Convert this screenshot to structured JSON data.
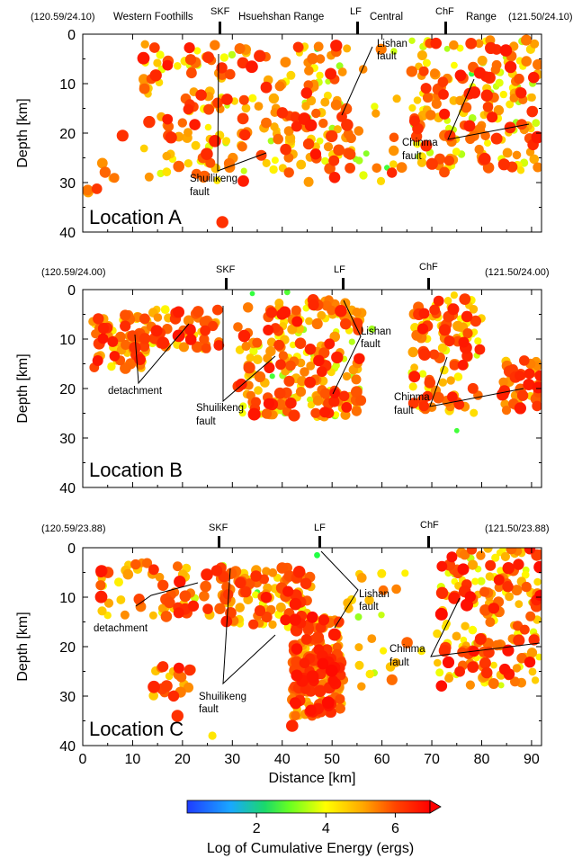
{
  "figure": {
    "xlabel": "Distance [km]",
    "ylabel": "Depth [km]",
    "colorbar": {
      "label": "Log of Cumulative Energy (ergs)",
      "ticks": [
        "2",
        "4",
        "6"
      ],
      "range": [
        0,
        7
      ],
      "colors": [
        "#1f3cff",
        "#19c8ff",
        "#22ff44",
        "#ffff00",
        "#ff8800",
        "#ff0000"
      ]
    },
    "region_labels": [
      "Western Foothills",
      "Hsuehshan Range",
      "Central",
      "Range"
    ],
    "fault_ticks": [
      "SKF",
      "LF",
      "ChF"
    ]
  },
  "panels": [
    {
      "location": "Location A",
      "left_coord": "(120.59/24.10)",
      "right_coord": "(121.50/24.10)",
      "annotations": [
        "Lishan",
        "fault",
        "Chinma",
        "fault",
        "Shuilikeng",
        "fault"
      ]
    },
    {
      "location": "Location B",
      "left_coord": "(120.59/24.00)",
      "right_coord": "(121.50/24.00)",
      "annotations": [
        "Lishan",
        "fault",
        "Chinma",
        "fault",
        "Shuilikeng",
        "fault",
        "detachment"
      ]
    },
    {
      "location": "Location C",
      "left_coord": "(120.59/23.88)",
      "right_coord": "(121.50/23.88)",
      "annotations": [
        "Lishan",
        "fault",
        "Chinma",
        "fault",
        "Shuilikeng",
        "fault",
        "detachment"
      ]
    }
  ],
  "chart_data": [
    {
      "type": "scatter",
      "title": "Location A",
      "xlabel": "",
      "ylabel": "Depth [km]",
      "xlim": [
        0,
        92
      ],
      "ylim": [
        0,
        40
      ],
      "fault_positions_km": {
        "SKF": 28,
        "LF": 55,
        "ChF": 73
      },
      "clusters": [
        {
          "x_range": [
            12,
            54
          ],
          "depth_range": [
            2,
            30
          ],
          "energy_range": [
            3.5,
            6.8
          ],
          "count": 240
        },
        {
          "x_range": [
            66,
            92
          ],
          "depth_range": [
            1,
            28
          ],
          "energy_range": [
            3.5,
            6.8
          ],
          "count": 200
        },
        {
          "x_range": [
            0,
            10
          ],
          "depth_range": [
            25,
            35
          ],
          "energy_range": [
            4.5,
            6.5
          ],
          "count": 6
        },
        {
          "x_range": [
            54,
            66
          ],
          "depth_range": [
            3,
            30
          ],
          "energy_range": [
            3.2,
            6.5
          ],
          "count": 18
        }
      ],
      "events": [
        {
          "x": 47,
          "depth": 3,
          "energy": 2.8
        },
        {
          "x": 78,
          "depth": 8,
          "energy": 2.9
        },
        {
          "x": 61,
          "depth": 27,
          "energy": 3.0
        },
        {
          "x": 28,
          "depth": 38,
          "energy": 6.5
        },
        {
          "x": 1,
          "depth": 31.5,
          "energy": 5.8
        },
        {
          "x": 8,
          "depth": 20.5,
          "energy": 6.5
        },
        {
          "x": 62,
          "depth": 28,
          "energy": 6.6
        }
      ]
    },
    {
      "type": "scatter",
      "title": "Location B",
      "xlabel": "",
      "ylabel": "Depth [km]",
      "xlim": [
        0,
        92
      ],
      "ylim": [
        0,
        40
      ],
      "fault_positions_km": {
        "SKF": 29,
        "LF": 53,
        "ChF": 70
      },
      "clusters": [
        {
          "x_range": [
            2,
            14
          ],
          "depth_range": [
            5,
            16
          ],
          "energy_range": [
            4.0,
            6.8
          ],
          "count": 80
        },
        {
          "x_range": [
            14,
            28
          ],
          "depth_range": [
            4,
            12
          ],
          "energy_range": [
            4.0,
            6.8
          ],
          "count": 45
        },
        {
          "x_range": [
            31,
            56
          ],
          "depth_range": [
            2,
            26
          ],
          "energy_range": [
            3.5,
            6.8
          ],
          "count": 230
        },
        {
          "x_range": [
            66,
            80
          ],
          "depth_range": [
            1,
            25
          ],
          "energy_range": [
            3.8,
            6.8
          ],
          "count": 110
        },
        {
          "x_range": [
            84,
            92
          ],
          "depth_range": [
            14,
            25
          ],
          "energy_range": [
            4.5,
            6.8
          ],
          "count": 40
        }
      ],
      "events": [
        {
          "x": 36,
          "depth": 18.5,
          "energy": 2.7
        },
        {
          "x": 38,
          "depth": 17.5,
          "energy": 3.0
        },
        {
          "x": 75,
          "depth": 28.5,
          "energy": 3.0
        },
        {
          "x": 34,
          "depth": 0.8,
          "energy": 2.9
        },
        {
          "x": 41,
          "depth": 0.5,
          "energy": 3.1
        },
        {
          "x": 58,
          "depth": 8,
          "energy": 3.6
        }
      ]
    },
    {
      "type": "scatter",
      "title": "Location C",
      "xlabel": "Distance [km]",
      "ylabel": "Depth [km]",
      "xlim": [
        0,
        92
      ],
      "ylim": [
        0,
        40
      ],
      "fault_positions_km": {
        "SKF": 28,
        "LF": 48,
        "ChF": 70
      },
      "clusters": [
        {
          "x_range": [
            3,
            30
          ],
          "depth_range": [
            3,
            14
          ],
          "energy_range": [
            3.8,
            6.8
          ],
          "count": 70
        },
        {
          "x_range": [
            28,
            46
          ],
          "depth_range": [
            4,
            16
          ],
          "energy_range": [
            4.0,
            6.8
          ],
          "count": 100
        },
        {
          "x_range": [
            42,
            52
          ],
          "depth_range": [
            14,
            34
          ],
          "energy_range": [
            4.5,
            6.9
          ],
          "count": 200
        },
        {
          "x_range": [
            14,
            22
          ],
          "depth_range": [
            24,
            30
          ],
          "energy_range": [
            4.5,
            6.8
          ],
          "count": 20
        },
        {
          "x_range": [
            71,
            92
          ],
          "depth_range": [
            0,
            28
          ],
          "energy_range": [
            3.8,
            6.9
          ],
          "count": 190
        },
        {
          "x_range": [
            52,
            70
          ],
          "depth_range": [
            5,
            30
          ],
          "energy_range": [
            3.5,
            6.0
          ],
          "count": 25
        }
      ],
      "events": [
        {
          "x": 47,
          "depth": 1.5,
          "energy": 2.8
        },
        {
          "x": 35,
          "depth": 9.0,
          "energy": 3.0
        },
        {
          "x": 19,
          "depth": 34.0,
          "energy": 6.5
        },
        {
          "x": 42,
          "depth": 36.0,
          "energy": 6.6
        },
        {
          "x": 26,
          "depth": 38.0,
          "energy": 4.5
        }
      ]
    }
  ]
}
